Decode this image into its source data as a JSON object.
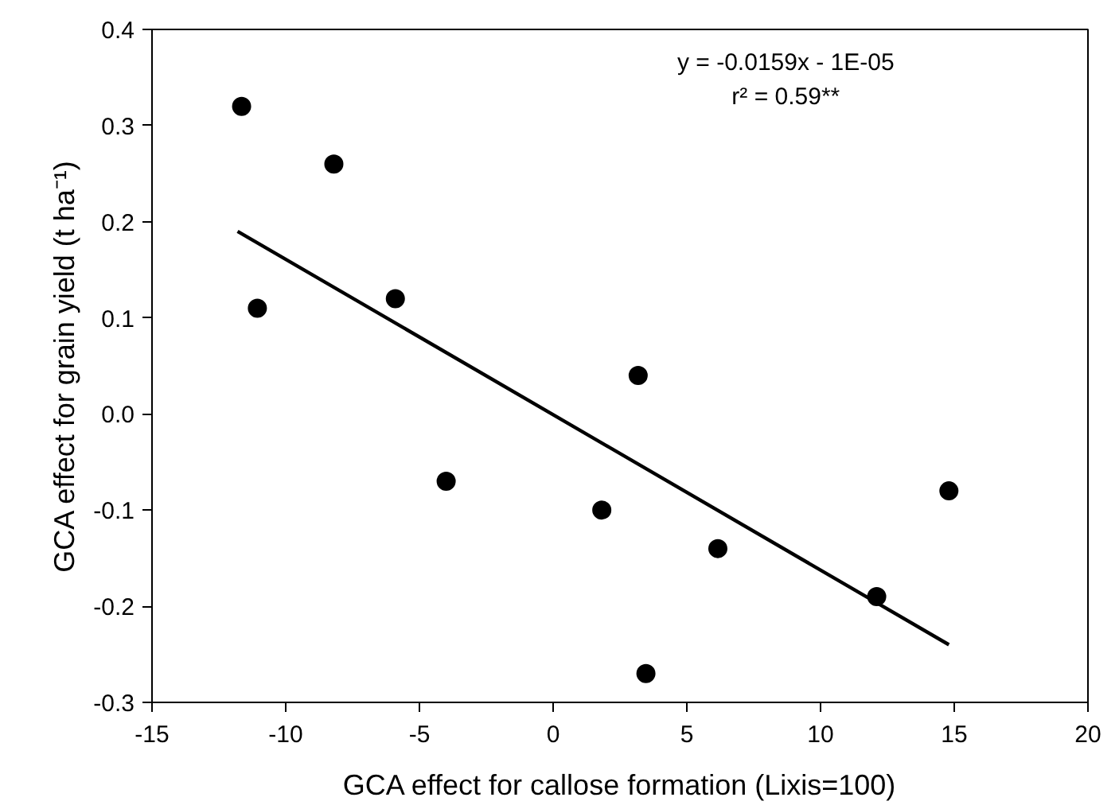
{
  "chart_data": {
    "type": "scatter",
    "xlabel": "GCA effect for callose formation (Lixis=100)",
    "ylabel": "GCA effect for grain yield (t ha⁻¹)",
    "annotations": [
      "y = -0.0159x - 1E-05",
      "r² = 0.59**"
    ],
    "series": [
      {
        "marker": "circle",
        "color": "#000000",
        "x": [
          -11.65,
          -11.06,
          -8.2,
          -5.9,
          -4.0,
          1.82,
          3.18,
          3.47,
          6.16,
          12.1,
          14.8
        ],
        "values": [
          0.32,
          0.11,
          0.26,
          0.12,
          -0.07,
          -0.1,
          0.04,
          -0.27,
          -0.14,
          -0.19,
          -0.08
        ]
      },
      {
        "type": "line",
        "marker": "none",
        "color": "#000000",
        "x": [
          -11.8,
          14.8
        ],
        "values": [
          0.19,
          -0.24
        ]
      }
    ],
    "xlim": [
      -15,
      20
    ],
    "xticks": [
      -15,
      -10,
      -5,
      0,
      5,
      10,
      15,
      20
    ],
    "ylim": [
      -0.3,
      0.4
    ],
    "yticks": [
      -0.3,
      -0.2,
      -0.1,
      {
        "value": 0,
        "label": "0.0"
      },
      0.1,
      0.2,
      0.3,
      0.4
    ],
    "grid": false
  }
}
